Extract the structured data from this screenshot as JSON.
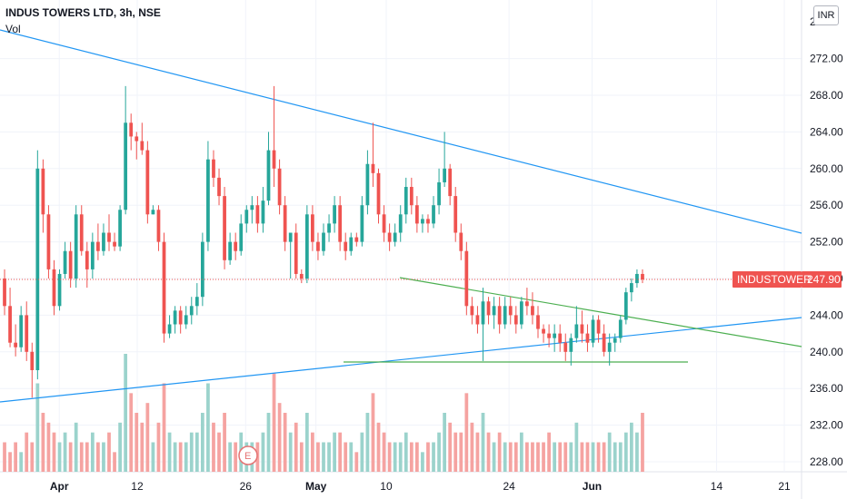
{
  "header": {
    "title": "INDUS TOWERS LTD, 3h, NSE",
    "volume_label": "Vol",
    "currency": "INR"
  },
  "price_label": {
    "symbol": "INDUSTOWER",
    "price": "247.90"
  },
  "event_marker": {
    "label": "E"
  },
  "colors": {
    "up": "#26a69a",
    "down": "#ef5350",
    "up_vol": "#9bd3cc",
    "down_vol": "#f5a3a1",
    "trend_blue": "#2196f3",
    "trend_green": "#4caf50",
    "axis_text": "#131722"
  },
  "chart_data": {
    "type": "candlestick",
    "y_ticks": [
      "228.00",
      "232.00",
      "236.00",
      "240.00",
      "244.00",
      "248.00",
      "252.00",
      "256.00",
      "260.00",
      "264.00",
      "268.00",
      "272.00"
    ],
    "y_top_tick": "2",
    "ylim": [
      227,
      277
    ],
    "x_ticks": [
      {
        "label": "Apr",
        "bold": true,
        "pos": 0.07
      },
      {
        "label": "12",
        "bold": false,
        "pos": 0.162
      },
      {
        "label": "26",
        "bold": false,
        "pos": 0.29
      },
      {
        "label": "May",
        "bold": true,
        "pos": 0.373
      },
      {
        "label": "10",
        "bold": false,
        "pos": 0.456
      },
      {
        "label": "24",
        "bold": false,
        "pos": 0.601
      },
      {
        "label": "Jun",
        "bold": true,
        "pos": 0.699
      },
      {
        "label": "14",
        "bold": false,
        "pos": 0.846
      },
      {
        "label": "21",
        "bold": false,
        "pos": 0.926
      }
    ],
    "current_price": 247.9,
    "candles": [
      [
        248.0,
        249.0,
        244.0,
        245.0
      ],
      [
        245.0,
        247.0,
        240.5,
        241.0
      ],
      [
        241.0,
        243.0,
        239.5,
        240.5
      ],
      [
        240.5,
        245.0,
        240.0,
        244.0
      ],
      [
        244.0,
        245.5,
        239.0,
        240.0
      ],
      [
        240.0,
        241.0,
        235.0,
        238.0
      ],
      [
        238.0,
        262.0,
        237.0,
        260.0
      ],
      [
        260.0,
        261.0,
        253.0,
        255.0
      ],
      [
        255.0,
        256.0,
        248.0,
        249.0
      ],
      [
        249.0,
        250.0,
        244.0,
        245.0
      ],
      [
        245.0,
        249.0,
        244.5,
        248.5
      ],
      [
        248.5,
        252.0,
        248.0,
        251.0
      ],
      [
        251.0,
        252.0,
        247.0,
        248.0
      ],
      [
        248.0,
        256.0,
        247.0,
        255.0
      ],
      [
        255.0,
        256.0,
        250.5,
        251.0
      ],
      [
        251.0,
        252.0,
        247.0,
        249.0
      ],
      [
        249.0,
        253.0,
        248.0,
        252.0
      ],
      [
        252.0,
        254.0,
        250.0,
        251.0
      ],
      [
        251.0,
        254.0,
        250.5,
        253.0
      ],
      [
        253.0,
        255.0,
        251.0,
        252.0
      ],
      [
        252.0,
        253.0,
        251.0,
        251.5
      ],
      [
        251.5,
        256.0,
        251.0,
        255.5
      ],
      [
        255.5,
        269.0,
        255.0,
        265.0
      ],
      [
        265.0,
        266.0,
        262.0,
        263.5
      ],
      [
        263.5,
        264.0,
        261.0,
        263.0
      ],
      [
        263.0,
        265.0,
        261.5,
        262.0
      ],
      [
        262.0,
        263.0,
        254.0,
        255.0
      ],
      [
        255.0,
        256.0,
        255.0,
        255.5
      ],
      [
        255.5,
        256.0,
        251.0,
        252.0
      ],
      [
        252.0,
        253.0,
        241.0,
        242.0
      ],
      [
        242.0,
        244.0,
        241.5,
        243.0
      ],
      [
        243.0,
        245.0,
        242.0,
        244.5
      ],
      [
        244.5,
        245.0,
        242.0,
        243.0
      ],
      [
        243.0,
        245.0,
        242.5,
        244.0
      ],
      [
        244.0,
        246.0,
        243.0,
        245.0
      ],
      [
        245.0,
        247.5,
        244.0,
        246.0
      ],
      [
        246.0,
        253.0,
        245.0,
        252.0
      ],
      [
        252.0,
        263.0,
        251.0,
        261.0
      ],
      [
        261.0,
        262.0,
        258.0,
        259.0
      ],
      [
        259.0,
        260.0,
        256.0,
        257.0
      ],
      [
        257.0,
        258.0,
        249.0,
        250.0
      ],
      [
        250.0,
        253.0,
        249.5,
        252.0
      ],
      [
        252.0,
        253.0,
        250.0,
        251.0
      ],
      [
        251.0,
        255.0,
        250.5,
        254.0
      ],
      [
        254.0,
        256.0,
        253.0,
        255.5
      ],
      [
        255.5,
        257.0,
        254.0,
        256.0
      ],
      [
        256.0,
        257.0,
        253.0,
        254.0
      ],
      [
        254.0,
        258.0,
        253.0,
        256.5
      ],
      [
        256.5,
        264.0,
        256.0,
        262.0
      ],
      [
        262.0,
        269.0,
        258.0,
        260.0
      ],
      [
        260.0,
        261.0,
        255.0,
        256.0
      ],
      [
        256.0,
        257.0,
        251.0,
        252.0
      ],
      [
        252.0,
        253.0,
        248.0,
        253.0
      ],
      [
        253.0,
        254.0,
        248.0,
        248.5
      ],
      [
        248.5,
        249.0,
        247.5,
        248.0
      ],
      [
        248.0,
        256.0,
        247.5,
        255.0
      ],
      [
        255.0,
        256.0,
        251.0,
        252.0
      ],
      [
        252.0,
        253.0,
        250.0,
        251.0
      ],
      [
        251.0,
        254.0,
        250.5,
        253.0
      ],
      [
        253.0,
        255.0,
        252.0,
        254.0
      ],
      [
        254.0,
        257.0,
        253.0,
        256.0
      ],
      [
        256.0,
        257.0,
        251.0,
        252.0
      ],
      [
        252.0,
        253.0,
        250.0,
        251.0
      ],
      [
        251.0,
        253.0,
        250.5,
        252.5
      ],
      [
        252.5,
        253.0,
        251.5,
        252.0
      ],
      [
        252.0,
        257.0,
        251.5,
        256.0
      ],
      [
        256.0,
        262.0,
        255.0,
        260.5
      ],
      [
        260.5,
        265.0,
        258.0,
        259.5
      ],
      [
        259.5,
        260.0,
        254.0,
        255.0
      ],
      [
        255.0,
        256.0,
        252.0,
        253.0
      ],
      [
        253.0,
        254.0,
        251.0,
        252.0
      ],
      [
        252.0,
        254.0,
        251.5,
        253.0
      ],
      [
        253.0,
        256.0,
        252.0,
        255.0
      ],
      [
        255.0,
        259.0,
        254.0,
        258.0
      ],
      [
        258.0,
        259.0,
        255.0,
        256.0
      ],
      [
        256.0,
        257.0,
        253.0,
        254.0
      ],
      [
        254.0,
        255.0,
        253.0,
        254.5
      ],
      [
        254.5,
        255.0,
        253.0,
        254.0
      ],
      [
        254.0,
        257.0,
        253.5,
        256.0
      ],
      [
        256.0,
        260.0,
        255.0,
        258.5
      ],
      [
        258.5,
        264.0,
        258.0,
        260.0
      ],
      [
        260.0,
        260.5,
        256.0,
        257.0
      ],
      [
        257.0,
        258.0,
        252.0,
        253.0
      ],
      [
        253.0,
        254.0,
        250.0,
        251.0
      ],
      [
        251.0,
        252.0,
        244.0,
        245.0
      ],
      [
        245.0,
        246.0,
        243.0,
        244.0
      ],
      [
        244.0,
        245.0,
        242.0,
        243.0
      ],
      [
        243.0,
        247.0,
        239.0,
        245.5
      ],
      [
        245.5,
        246.0,
        243.0,
        244.0
      ],
      [
        244.0,
        246.0,
        242.5,
        245.0
      ],
      [
        245.0,
        246.0,
        242.0,
        243.0
      ],
      [
        243.0,
        246.0,
        242.5,
        245.0
      ],
      [
        245.0,
        246.0,
        243.0,
        244.0
      ],
      [
        244.0,
        245.0,
        242.0,
        243.0
      ],
      [
        243.0,
        246.0,
        242.5,
        245.5
      ],
      [
        245.5,
        247.0,
        244.0,
        245.0
      ],
      [
        245.0,
        246.5,
        243.0,
        244.0
      ],
      [
        244.0,
        245.0,
        241.5,
        242.5
      ],
      [
        242.5,
        243.0,
        241.0,
        242.0
      ],
      [
        242.0,
        243.0,
        240.5,
        241.5
      ],
      [
        241.5,
        243.0,
        240.0,
        242.0
      ],
      [
        242.0,
        243.0,
        240.0,
        241.0
      ],
      [
        241.0,
        242.0,
        239.0,
        240.0
      ],
      [
        240.0,
        242.0,
        238.5,
        241.5
      ],
      [
        241.5,
        245.0,
        241.0,
        243.0
      ],
      [
        243.0,
        244.5,
        241.0,
        242.0
      ],
      [
        242.0,
        243.0,
        240.0,
        241.0
      ],
      [
        241.0,
        244.0,
        240.5,
        243.5
      ],
      [
        243.5,
        244.0,
        241.0,
        242.0
      ],
      [
        242.0,
        243.0,
        239.5,
        240.0
      ],
      [
        240.0,
        242.0,
        238.5,
        241.0
      ],
      [
        241.0,
        242.0,
        240.0,
        241.5
      ],
      [
        241.5,
        244.0,
        241.0,
        243.5
      ],
      [
        243.5,
        247.0,
        243.0,
        246.5
      ],
      [
        246.5,
        248.0,
        245.5,
        247.5
      ],
      [
        247.5,
        249.0,
        247.0,
        248.5
      ],
      [
        248.5,
        249.0,
        247.5,
        247.9
      ]
    ],
    "volume": [
      3,
      2,
      3,
      2,
      4,
      3,
      9,
      6,
      5,
      4,
      3,
      4,
      3,
      5,
      3,
      3,
      4,
      3,
      3,
      4,
      2,
      5,
      12,
      8,
      6,
      5,
      7,
      3,
      5,
      9,
      4,
      3,
      3,
      3,
      4,
      4,
      6,
      9,
      5,
      4,
      6,
      3,
      3,
      4,
      3,
      3,
      3,
      4,
      6,
      10,
      7,
      6,
      4,
      5,
      3,
      6,
      4,
      3,
      3,
      3,
      4,
      4,
      3,
      3,
      2,
      4,
      6,
      8,
      5,
      4,
      3,
      3,
      3,
      4,
      3,
      3,
      2,
      3,
      3,
      4,
      6,
      5,
      4,
      4,
      8,
      5,
      4,
      6,
      4,
      3,
      4,
      3,
      3,
      3,
      4,
      3,
      3,
      3,
      3,
      4,
      3,
      3,
      3,
      3,
      5,
      3,
      3,
      3,
      3,
      3,
      4,
      3,
      3,
      4,
      5,
      4,
      6
    ]
  }
}
